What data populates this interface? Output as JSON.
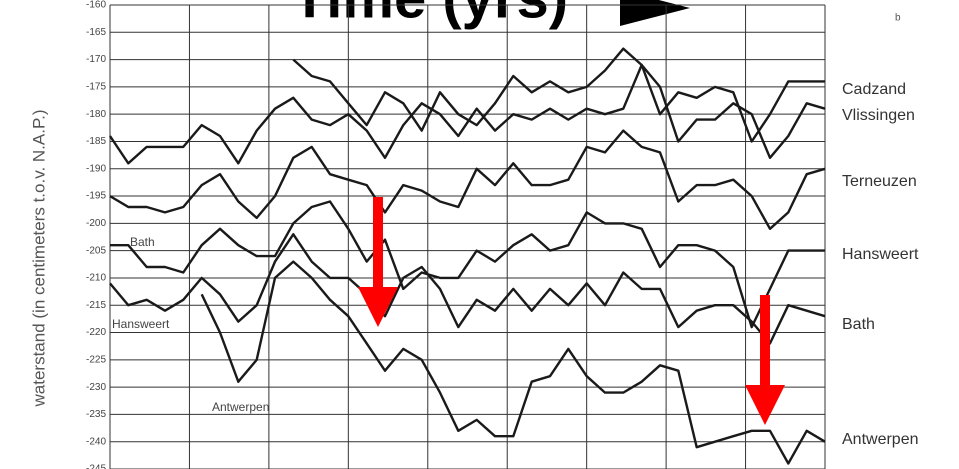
{
  "chart_data": {
    "type": "line",
    "title": "Time (yrs)",
    "panel_label": "b",
    "ylabel": "waterstand (in centimeters t.o.v. N.A.P.)",
    "annotations": [
      "Bath",
      "Hansweert",
      "Antwerpen"
    ],
    "categories": [
      null,
      null,
      null,
      null,
      null,
      null,
      null,
      null,
      null,
      null,
      null,
      null,
      null,
      null,
      null,
      null,
      null,
      null,
      null,
      null,
      null,
      null,
      null,
      null,
      null,
      null,
      null,
      null,
      null,
      null,
      null,
      null,
      null,
      null,
      null,
      null,
      null,
      null,
      null,
      null
    ],
    "series": [
      {
        "name": "Cadzand",
        "color": "#1a1a1a",
        "values": [
          null,
          null,
          null,
          null,
          null,
          null,
          null,
          null,
          null,
          null,
          -170,
          -173,
          -174,
          -178,
          -182,
          -176,
          -178,
          -183,
          -176,
          -180,
          -182,
          -178,
          -173,
          -176,
          -174,
          -176,
          -175,
          -172,
          -168,
          -171,
          -180,
          -176,
          -177,
          -175,
          -176,
          -185,
          -180,
          -174,
          -174,
          -174
        ]
      },
      {
        "name": "Vlissingen",
        "color": "#1a1a1a",
        "values": [
          -184,
          -189,
          -186,
          -186,
          -186,
          -182,
          -184,
          -189,
          -183,
          -179,
          -177,
          -181,
          -182,
          -180,
          -183,
          -188,
          -182,
          -178,
          -180,
          -184,
          -179,
          -183,
          -180,
          -181,
          -179,
          -181,
          -179,
          -180,
          -179,
          -171,
          -175,
          -185,
          -181,
          -181,
          -178,
          -180,
          -188,
          -184,
          -178,
          -179
        ]
      },
      {
        "name": "Terneuzen",
        "color": "#1a1a1a",
        "values": [
          -195,
          -197,
          -197,
          -198,
          -197,
          -193,
          -191,
          -196,
          -199,
          -195,
          -188,
          -186,
          -191,
          -192,
          -193,
          -198,
          -193,
          -194,
          -196,
          -197,
          -190,
          -193,
          -189,
          -193,
          -193,
          -192,
          -186,
          -187,
          -183,
          -186,
          -187,
          -196,
          -193,
          -193,
          -192,
          -195,
          -201,
          -198,
          -191,
          -190
        ]
      },
      {
        "name": "Hansweert",
        "color": "#1a1a1a",
        "values": [
          -204,
          -204,
          -208,
          -208,
          -209,
          -204,
          -201,
          -204,
          -206,
          -206,
          -200,
          -197,
          -196,
          -201,
          -207,
          -203,
          -212,
          -209,
          -210,
          -210,
          -205,
          -207,
          -204,
          -202,
          -205,
          -204,
          -198,
          -200,
          -200,
          -201,
          -208,
          -204,
          -204,
          -205,
          -208,
          -219,
          -212,
          -205,
          -205,
          -205
        ]
      },
      {
        "name": "Bath",
        "color": "#1a1a1a",
        "values": [
          -211,
          -215,
          -214,
          -216,
          -214,
          -210,
          -213,
          -218,
          -215,
          -207,
          -202,
          -207,
          -210,
          -210,
          -213,
          -217,
          -210,
          -208,
          -212,
          -219,
          -214,
          -216,
          -212,
          -216,
          -212,
          -215,
          -211,
          -215,
          -209,
          -212,
          -212,
          -219,
          -216,
          -215,
          -215,
          -218,
          -222,
          -215,
          -216,
          -217
        ]
      },
      {
        "name": "Antwerpen",
        "color": "#1a1a1a",
        "values": [
          null,
          null,
          null,
          null,
          null,
          -213,
          -220,
          -229,
          -225,
          -210,
          -207,
          -210,
          -214,
          -217,
          -222,
          -227,
          -223,
          -225,
          -231,
          -238,
          -236,
          -239,
          -239,
          -229,
          -228,
          -223,
          -228,
          -231,
          -231,
          -229,
          -226,
          -227,
          -241,
          -240,
          -239,
          -238,
          -238,
          -244,
          -238,
          -240
        ]
      }
    ],
    "ylim": [
      -245,
      -160
    ],
    "yticks": [
      -160,
      -165,
      -170,
      -175,
      -180,
      -185,
      -190,
      -195,
      -200,
      -205,
      -210,
      -215,
      -220,
      -225,
      -230,
      -235,
      -240,
      -245
    ],
    "grid": true
  }
}
